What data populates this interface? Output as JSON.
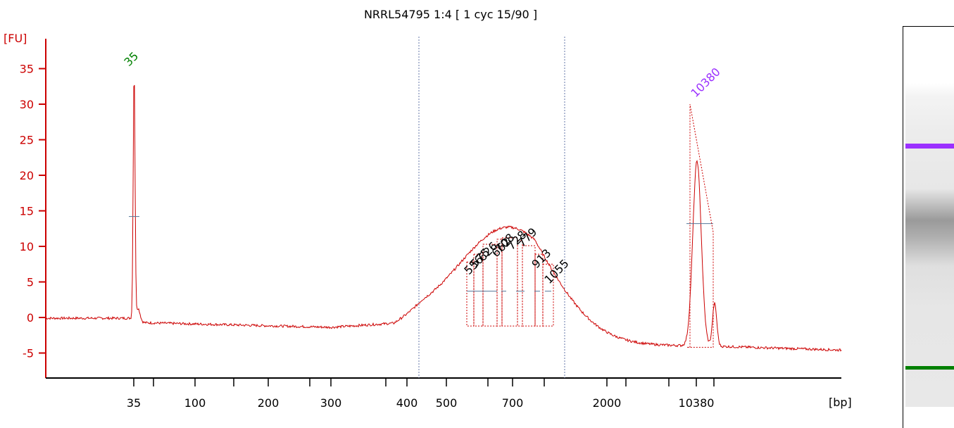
{
  "chart_data": {
    "type": "line",
    "title": "NRRL54795 1:4  [ 1 cyc 15/90 ]",
    "ylabel": "[FU]",
    "xlabel": "[bp]",
    "ylim": [
      -9,
      40
    ],
    "yticks": [
      -5,
      0,
      5,
      10,
      15,
      20,
      25,
      30,
      35
    ],
    "xtick_labels": [
      "35",
      "100",
      "200",
      "300",
      "400",
      "500",
      "700",
      "2000",
      "10380"
    ],
    "marker_peaks": [
      {
        "label": "35",
        "height_fu": 35.5,
        "color": "#008000"
      },
      {
        "label": "10380",
        "height_fu": 30,
        "color": "#9b30ff"
      }
    ],
    "fragment_peaks": [
      {
        "label": "556",
        "height_fu": 5
      },
      {
        "label": "575",
        "height_fu": 6
      },
      {
        "label": "626",
        "height_fu": 7
      },
      {
        "label": "662",
        "height_fu": 7.5
      },
      {
        "label": "708",
        "height_fu": 8
      },
      {
        "label": "728",
        "height_fu": 8.5
      },
      {
        "label": "779",
        "height_fu": 8.5
      },
      {
        "label": "913",
        "height_fu": 7
      },
      {
        "label": "1055",
        "height_fu": 5
      }
    ],
    "grid": false,
    "legend": "none",
    "line_color": "#cc0000"
  },
  "gel": {
    "upper_marker_color": "#9b30ff",
    "lower_marker_color": "#008000"
  }
}
